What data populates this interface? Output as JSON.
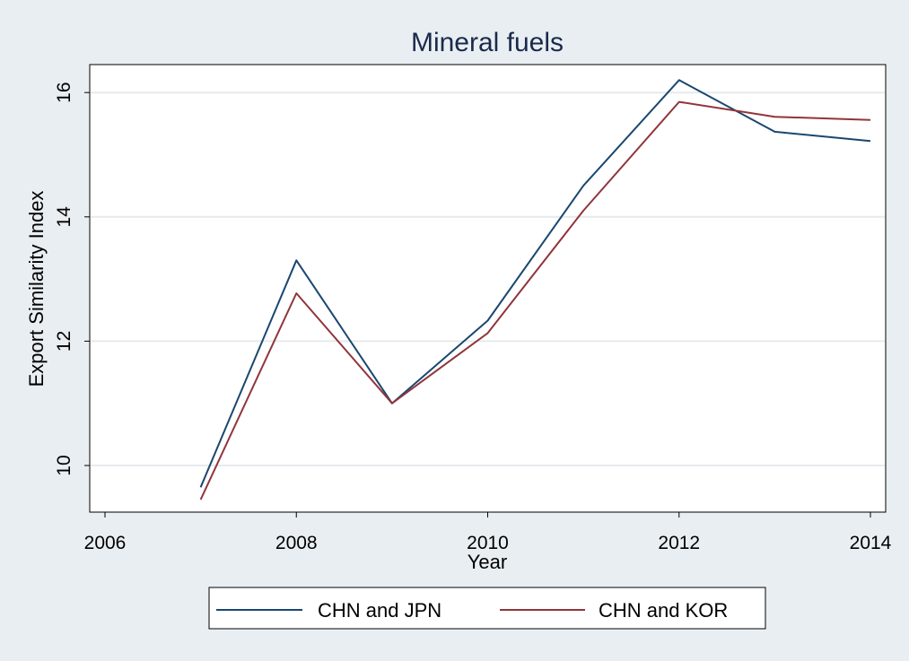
{
  "chart_data": {
    "type": "line",
    "title": "Mineral fuels",
    "xlabel": "Year",
    "ylabel": "Export Similarity Index",
    "xlim": [
      2006,
      2014
    ],
    "ylim": [
      9.25,
      16.45
    ],
    "xticks": [
      2006,
      2008,
      2010,
      2012,
      2014
    ],
    "yticks": [
      10,
      12,
      14,
      16
    ],
    "grid": true,
    "legend_position": "bottom",
    "x": [
      2007,
      2008,
      2009,
      2010,
      2011,
      2012,
      2013,
      2014
    ],
    "series": [
      {
        "name": "CHN and JPN",
        "color": "#1a476f",
        "values": [
          9.65,
          13.3,
          11.0,
          12.33,
          14.5,
          16.2,
          15.37,
          15.22
        ]
      },
      {
        "name": "CHN and KOR",
        "color": "#90353b",
        "values": [
          9.45,
          12.77,
          11.0,
          12.13,
          14.1,
          15.85,
          15.61,
          15.56
        ]
      }
    ]
  }
}
